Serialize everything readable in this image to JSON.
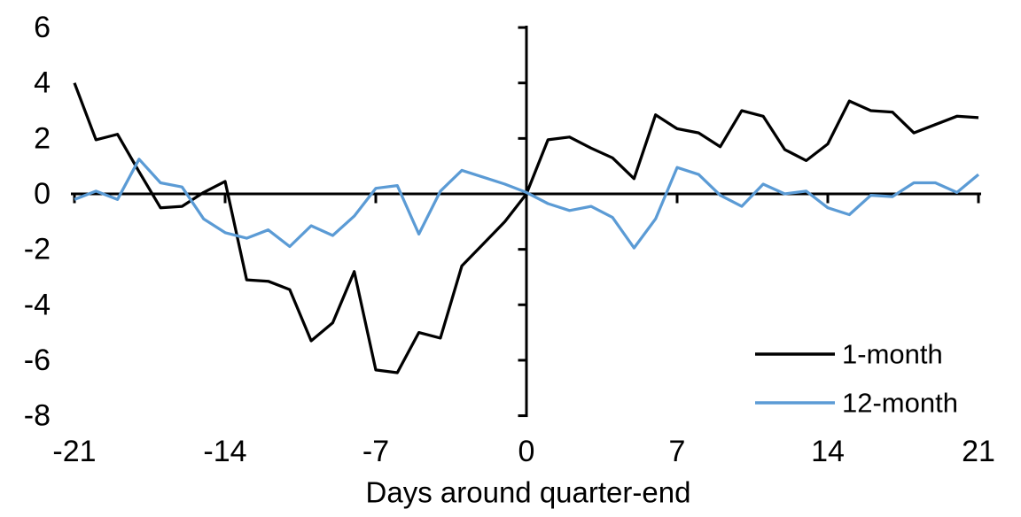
{
  "chart_data": {
    "type": "line",
    "title": "",
    "xlabel": "Days around quarter-end",
    "ylabel": "",
    "xlim": [
      -21,
      21
    ],
    "ylim": [
      -8,
      6
    ],
    "x_ticks": [
      -21,
      -14,
      -7,
      0,
      7,
      14,
      21
    ],
    "y_ticks": [
      6,
      4,
      2,
      0,
      -2,
      -4,
      -6,
      -8
    ],
    "grid": false,
    "legend_position": "inside-bottom-right",
    "axes_cross_at_zero": true,
    "x": [
      -21,
      -20,
      -19,
      -18,
      -17,
      -16,
      -15,
      -14,
      -13,
      -12,
      -11,
      -10,
      -9,
      -8,
      -7,
      -6,
      -5,
      -4,
      -3,
      -2,
      -1,
      0,
      1,
      2,
      3,
      4,
      5,
      6,
      7,
      8,
      9,
      10,
      11,
      12,
      13,
      14,
      15,
      16,
      17,
      18,
      19,
      20,
      21
    ],
    "series": [
      {
        "name": "1-month",
        "color": "#000000",
        "values": [
          4.0,
          1.95,
          2.15,
          0.8,
          -0.5,
          -0.45,
          0.05,
          0.45,
          -3.1,
          -3.15,
          -3.45,
          -5.3,
          -4.65,
          -2.8,
          -6.35,
          -6.45,
          -5.0,
          -5.2,
          -2.6,
          -1.8,
          -1.0,
          0.0,
          1.95,
          2.05,
          1.65,
          1.3,
          0.55,
          2.85,
          2.35,
          2.2,
          1.7,
          3.0,
          2.8,
          1.6,
          1.2,
          1.8,
          3.35,
          3.0,
          2.95,
          2.2,
          2.5,
          2.8,
          2.75
        ]
      },
      {
        "name": "12-month",
        "color": "#5B9BD5",
        "values": [
          -0.2,
          0.1,
          -0.2,
          1.25,
          0.4,
          0.25,
          -0.9,
          -1.4,
          -1.6,
          -1.3,
          -1.9,
          -1.15,
          -1.5,
          -0.8,
          0.2,
          0.3,
          -1.45,
          0.1,
          0.85,
          0.6,
          0.35,
          0.05,
          -0.35,
          -0.6,
          -0.45,
          -0.85,
          -1.95,
          -0.9,
          0.95,
          0.7,
          -0.05,
          -0.45,
          0.35,
          0.0,
          0.1,
          -0.5,
          -0.75,
          -0.05,
          -0.1,
          0.4,
          0.4,
          0.05,
          0.7
        ]
      }
    ]
  },
  "legend": {
    "items": [
      {
        "label": "1-month"
      },
      {
        "label": "12-month"
      }
    ]
  }
}
